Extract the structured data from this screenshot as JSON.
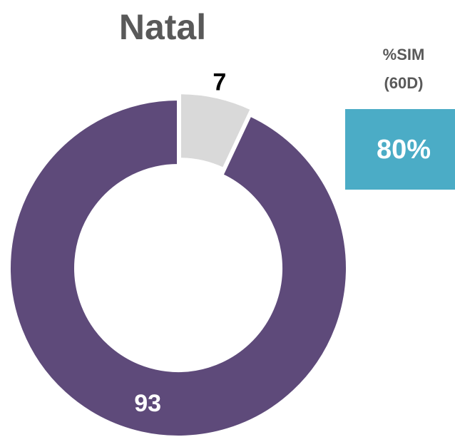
{
  "chart_data": {
    "type": "pie",
    "title": "Natal",
    "categories": [
      null,
      null
    ],
    "values": [
      7,
      93
    ],
    "colors": [
      "#d9d9d9",
      "#5e4a7a"
    ],
    "donut": true
  },
  "kpi": {
    "label": [
      "%SIM",
      "(60D)"
    ],
    "value": "80%",
    "color": "#4bacc6"
  }
}
